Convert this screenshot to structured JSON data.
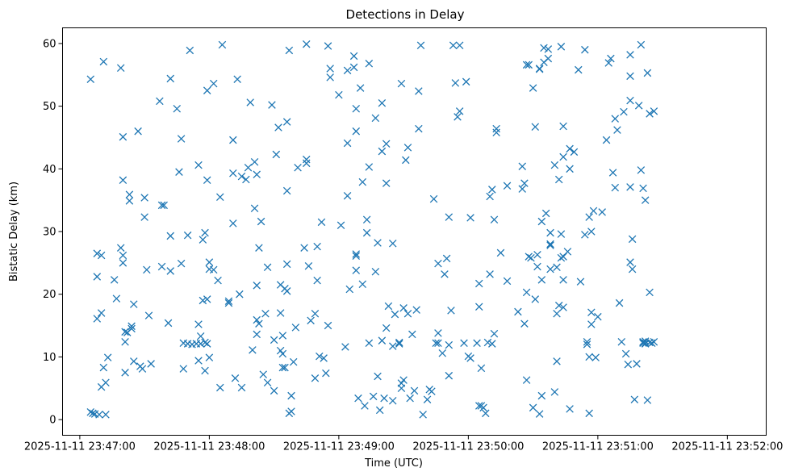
{
  "chart_data": {
    "type": "scatter",
    "title": "Detections in Delay",
    "xlabel": "Time (UTC)",
    "ylabel": "Bistatic Delay (km)",
    "marker": "x",
    "color": "#1f77b4",
    "xlim": [
      "2025-11-11 23:46:52",
      "2025-11-11 23:52:18"
    ],
    "ylim": [
      -2.5,
      62.5
    ],
    "x_ticks": [
      "2025-11-11 23:47:00",
      "2025-11-11 23:48:00",
      "2025-11-11 23:49:00",
      "2025-11-11 23:50:00",
      "2025-11-11 23:51:00",
      "2025-11-11 23:52:00"
    ],
    "y_ticks": [
      0,
      10,
      20,
      30,
      40,
      50,
      60
    ],
    "grid": false,
    "x_unit": "seconds after 2025-11-11 23:47:00",
    "points": [
      [
        5,
        54.3
      ],
      [
        5,
        1.2
      ],
      [
        6,
        1.0
      ],
      [
        7,
        0.9
      ],
      [
        8,
        26.5
      ],
      [
        8,
        22.8
      ],
      [
        8,
        16.1
      ],
      [
        9,
        0.8
      ],
      [
        10,
        17.0
      ],
      [
        10,
        5.2
      ],
      [
        10,
        26.2
      ],
      [
        11,
        8.3
      ],
      [
        11,
        57.1
      ],
      [
        12,
        0.8
      ],
      [
        12,
        5.9
      ],
      [
        13,
        9.9
      ],
      [
        16,
        22.3
      ],
      [
        17,
        19.3
      ],
      [
        19,
        56.1
      ],
      [
        19,
        27.4
      ],
      [
        20,
        26.2
      ],
      [
        20,
        25.0
      ],
      [
        20,
        45.1
      ],
      [
        20,
        38.2
      ],
      [
        21,
        12.4
      ],
      [
        21,
        14.0
      ],
      [
        21,
        7.5
      ],
      [
        22,
        13.9
      ],
      [
        23,
        35.9
      ],
      [
        23,
        34.9
      ],
      [
        24,
        14.5
      ],
      [
        24,
        14.9
      ],
      [
        25,
        18.4
      ],
      [
        25,
        9.3
      ],
      [
        27,
        46.0
      ],
      [
        28,
        8.5
      ],
      [
        29,
        8.1
      ],
      [
        30,
        35.4
      ],
      [
        30,
        32.3
      ],
      [
        31,
        23.9
      ],
      [
        32,
        16.6
      ],
      [
        33,
        8.9
      ],
      [
        37,
        50.8
      ],
      [
        38,
        24.4
      ],
      [
        38,
        34.2
      ],
      [
        39,
        34.2
      ],
      [
        41,
        15.4
      ],
      [
        42,
        54.4
      ],
      [
        42,
        23.7
      ],
      [
        42,
        29.3
      ],
      [
        45,
        49.6
      ],
      [
        46,
        39.5
      ],
      [
        47,
        44.8
      ],
      [
        47,
        24.9
      ],
      [
        48,
        12.2
      ],
      [
        48,
        8.1
      ],
      [
        50,
        12.1
      ],
      [
        50,
        29.4
      ],
      [
        51,
        58.9
      ],
      [
        52,
        12.0
      ],
      [
        54,
        12.1
      ],
      [
        55,
        15.2
      ],
      [
        55,
        40.6
      ],
      [
        55,
        9.4
      ],
      [
        56,
        13.3
      ],
      [
        56,
        12.1
      ],
      [
        57,
        28.7
      ],
      [
        57,
        19.0
      ],
      [
        58,
        7.8
      ],
      [
        58,
        12.3
      ],
      [
        58,
        29.8
      ],
      [
        59,
        19.2
      ],
      [
        59,
        52.5
      ],
      [
        59,
        12.1
      ],
      [
        59,
        38.2
      ],
      [
        60,
        25.1
      ],
      [
        60,
        9.9
      ],
      [
        60,
        24.0
      ],
      [
        62,
        23.9
      ],
      [
        62,
        53.6
      ],
      [
        64,
        22.2
      ],
      [
        65,
        35.5
      ],
      [
        65,
        5.1
      ],
      [
        66,
        59.8
      ],
      [
        69,
        18.6
      ],
      [
        69,
        18.9
      ],
      [
        71,
        44.6
      ],
      [
        71,
        31.3
      ],
      [
        71,
        39.3
      ],
      [
        72,
        6.6
      ],
      [
        73,
        54.3
      ],
      [
        74,
        20.0
      ],
      [
        75,
        5.1
      ],
      [
        75,
        38.8
      ],
      [
        77,
        38.3
      ],
      [
        78,
        40.2
      ],
      [
        79,
        50.6
      ],
      [
        80,
        11.1
      ],
      [
        81,
        41.1
      ],
      [
        81,
        33.7
      ],
      [
        82,
        39.1
      ],
      [
        82,
        21.4
      ],
      [
        82,
        15.9
      ],
      [
        82,
        13.6
      ],
      [
        83,
        27.4
      ],
      [
        83,
        15.3
      ],
      [
        84,
        31.6
      ],
      [
        85,
        7.2
      ],
      [
        86,
        16.9
      ],
      [
        87,
        24.3
      ],
      [
        87,
        5.9
      ],
      [
        89,
        50.2
      ],
      [
        90,
        4.6
      ],
      [
        90,
        12.7
      ],
      [
        91,
        42.3
      ],
      [
        92,
        46.6
      ],
      [
        93,
        21.5
      ],
      [
        93,
        17.0
      ],
      [
        93,
        11.0
      ],
      [
        94,
        8.3
      ],
      [
        94,
        10.5
      ],
      [
        94,
        13.4
      ],
      [
        95,
        20.9
      ],
      [
        95,
        8.3
      ],
      [
        96,
        47.5
      ],
      [
        96,
        36.5
      ],
      [
        96,
        24.8
      ],
      [
        96,
        20.5
      ],
      [
        97,
        58.9
      ],
      [
        97,
        1.0
      ],
      [
        98,
        3.8
      ],
      [
        98,
        1.3
      ],
      [
        99,
        9.2
      ],
      [
        100,
        14.7
      ],
      [
        101,
        40.2
      ],
      [
        104,
        27.4
      ],
      [
        105,
        59.9
      ],
      [
        105,
        41.5
      ],
      [
        105,
        40.9
      ],
      [
        106,
        24.5
      ],
      [
        107,
        15.8
      ],
      [
        109,
        16.9
      ],
      [
        109,
        6.6
      ],
      [
        110,
        27.6
      ],
      [
        110,
        22.2
      ],
      [
        111,
        10.1
      ],
      [
        112,
        31.5
      ],
      [
        113,
        9.8
      ],
      [
        114,
        7.4
      ],
      [
        115,
        59.6
      ],
      [
        115,
        15.0
      ],
      [
        116,
        56.0
      ],
      [
        116,
        54.6
      ],
      [
        120,
        51.8
      ],
      [
        121,
        31.0
      ],
      [
        123,
        11.6
      ],
      [
        124,
        55.7
      ],
      [
        124,
        44.1
      ],
      [
        124,
        35.7
      ],
      [
        125,
        20.8
      ],
      [
        127,
        58.0
      ],
      [
        127,
        56.2
      ],
      [
        128,
        49.6
      ],
      [
        128,
        46.0
      ],
      [
        128,
        26.4
      ],
      [
        128,
        26.1
      ],
      [
        128,
        23.8
      ],
      [
        129,
        3.4
      ],
      [
        130,
        52.9
      ],
      [
        131,
        37.9
      ],
      [
        131,
        21.6
      ],
      [
        132,
        2.2
      ],
      [
        133,
        29.8
      ],
      [
        133,
        31.9
      ],
      [
        134,
        56.8
      ],
      [
        134,
        40.3
      ],
      [
        134,
        12.2
      ],
      [
        136,
        3.7
      ],
      [
        137,
        48.1
      ],
      [
        137,
        23.6
      ],
      [
        138,
        28.2
      ],
      [
        138,
        6.9
      ],
      [
        139,
        1.5
      ],
      [
        140,
        42.8
      ],
      [
        140,
        50.5
      ],
      [
        140,
        12.6
      ],
      [
        141,
        3.4
      ],
      [
        142,
        37.7
      ],
      [
        142,
        44.0
      ],
      [
        142,
        14.6
      ],
      [
        143,
        18.1
      ],
      [
        145,
        3.0
      ],
      [
        145,
        28.1
      ],
      [
        145,
        11.7
      ],
      [
        146,
        16.8
      ],
      [
        148,
        12.1
      ],
      [
        148,
        12.3
      ],
      [
        149,
        53.6
      ],
      [
        149,
        5.0
      ],
      [
        149,
        5.8
      ],
      [
        150,
        6.3
      ],
      [
        150,
        17.8
      ],
      [
        151,
        41.4
      ],
      [
        152,
        43.4
      ],
      [
        152,
        16.9
      ],
      [
        153,
        3.4
      ],
      [
        154,
        13.6
      ],
      [
        155,
        4.6
      ],
      [
        156,
        17.5
      ],
      [
        157,
        52.4
      ],
      [
        157,
        46.4
      ],
      [
        158,
        59.7
      ],
      [
        159,
        0.8
      ],
      [
        161,
        3.2
      ],
      [
        162,
        4.8
      ],
      [
        163,
        4.5
      ],
      [
        164,
        35.2
      ],
      [
        165,
        12.2
      ],
      [
        166,
        12.2
      ],
      [
        166,
        24.9
      ],
      [
        166,
        13.8
      ],
      [
        168,
        10.6
      ],
      [
        169,
        23.2
      ],
      [
        170,
        25.7
      ],
      [
        171,
        11.9
      ],
      [
        171,
        32.3
      ],
      [
        171,
        7.0
      ],
      [
        172,
        17.4
      ],
      [
        173,
        59.7
      ],
      [
        174,
        53.7
      ],
      [
        175,
        48.3
      ],
      [
        176,
        59.7
      ],
      [
        176,
        49.2
      ],
      [
        178,
        12.2
      ],
      [
        179,
        53.9
      ],
      [
        180,
        10.1
      ],
      [
        181,
        32.2
      ],
      [
        181,
        9.8
      ],
      [
        184,
        12.2
      ],
      [
        185,
        21.7
      ],
      [
        185,
        18.0
      ],
      [
        185,
        2.2
      ],
      [
        186,
        8.2
      ],
      [
        186,
        2.2
      ],
      [
        187,
        1.9
      ],
      [
        188,
        1.0
      ],
      [
        189,
        12.3
      ],
      [
        190,
        35.6
      ],
      [
        190,
        23.2
      ],
      [
        191,
        36.7
      ],
      [
        191,
        12.1
      ],
      [
        192,
        13.7
      ],
      [
        192,
        31.9
      ],
      [
        193,
        46.4
      ],
      [
        193,
        45.8
      ],
      [
        195,
        26.6
      ],
      [
        198,
        37.3
      ],
      [
        198,
        22.1
      ],
      [
        203,
        17.2
      ],
      [
        205,
        40.4
      ],
      [
        205,
        36.8
      ],
      [
        206,
        15.3
      ],
      [
        206,
        37.7
      ],
      [
        207,
        56.6
      ],
      [
        207,
        6.3
      ],
      [
        207,
        20.3
      ],
      [
        208,
        26.0
      ],
      [
        208,
        56.6
      ],
      [
        209,
        25.8
      ],
      [
        210,
        52.9
      ],
      [
        210,
        1.9
      ],
      [
        211,
        46.7
      ],
      [
        211,
        19.2
      ],
      [
        212,
        24.4
      ],
      [
        212,
        26.3
      ],
      [
        213,
        0.9
      ],
      [
        213,
        56.0
      ],
      [
        213,
        55.9
      ],
      [
        214,
        31.6
      ],
      [
        214,
        22.3
      ],
      [
        214,
        3.8
      ],
      [
        215,
        57.0
      ],
      [
        215,
        59.3
      ],
      [
        216,
        32.9
      ],
      [
        217,
        59.1
      ],
      [
        217,
        57.6
      ],
      [
        218,
        29.8
      ],
      [
        218,
        28.0
      ],
      [
        218,
        24.0
      ],
      [
        218,
        27.8
      ],
      [
        220,
        40.6
      ],
      [
        220,
        4.4
      ],
      [
        221,
        9.3
      ],
      [
        221,
        24.3
      ],
      [
        221,
        16.9
      ],
      [
        222,
        38.3
      ],
      [
        222,
        18.2
      ],
      [
        223,
        59.5
      ],
      [
        223,
        25.8
      ],
      [
        223,
        29.6
      ],
      [
        224,
        46.8
      ],
      [
        224,
        41.9
      ],
      [
        224,
        26.0
      ],
      [
        224,
        22.3
      ],
      [
        224,
        17.9
      ],
      [
        226,
        26.8
      ],
      [
        227,
        40.0
      ],
      [
        227,
        43.2
      ],
      [
        227,
        1.7
      ],
      [
        229,
        42.7
      ],
      [
        231,
        55.8
      ],
      [
        232,
        22.0
      ],
      [
        234,
        59.0
      ],
      [
        234,
        29.5
      ],
      [
        235,
        12.4
      ],
      [
        235,
        12.0
      ],
      [
        236,
        1.0
      ],
      [
        236,
        32.3
      ],
      [
        236,
        10.0
      ],
      [
        237,
        17.1
      ],
      [
        237,
        15.2
      ],
      [
        237,
        30.0
      ],
      [
        238,
        33.3
      ],
      [
        239,
        9.9
      ],
      [
        240,
        16.4
      ],
      [
        242,
        33.1
      ],
      [
        244,
        44.6
      ],
      [
        245,
        56.9
      ],
      [
        246,
        57.6
      ],
      [
        247,
        39.4
      ],
      [
        248,
        48.0
      ],
      [
        248,
        37.0
      ],
      [
        249,
        46.2
      ],
      [
        250,
        18.6
      ],
      [
        251,
        12.4
      ],
      [
        252,
        49.1
      ],
      [
        253,
        10.5
      ],
      [
        254,
        8.8
      ],
      [
        255,
        58.2
      ],
      [
        255,
        54.8
      ],
      [
        255,
        50.9
      ],
      [
        255,
        37.1
      ],
      [
        255,
        25.1
      ],
      [
        256,
        28.8
      ],
      [
        256,
        24.0
      ],
      [
        257,
        3.2
      ],
      [
        258,
        8.9
      ],
      [
        259,
        50.1
      ],
      [
        260,
        59.8
      ],
      [
        260,
        39.8
      ],
      [
        261,
        12.3
      ],
      [
        261,
        12.4
      ],
      [
        261,
        12.2
      ],
      [
        261,
        36.9
      ],
      [
        262,
        12.2
      ],
      [
        262,
        12.5
      ],
      [
        262,
        35.0
      ],
      [
        262,
        12.1
      ],
      [
        263,
        55.3
      ],
      [
        263,
        3.1
      ],
      [
        264,
        48.8
      ],
      [
        264,
        12.3
      ],
      [
        264,
        20.3
      ],
      [
        265,
        12.2
      ],
      [
        266,
        12.4
      ],
      [
        266,
        49.2
      ]
    ]
  }
}
